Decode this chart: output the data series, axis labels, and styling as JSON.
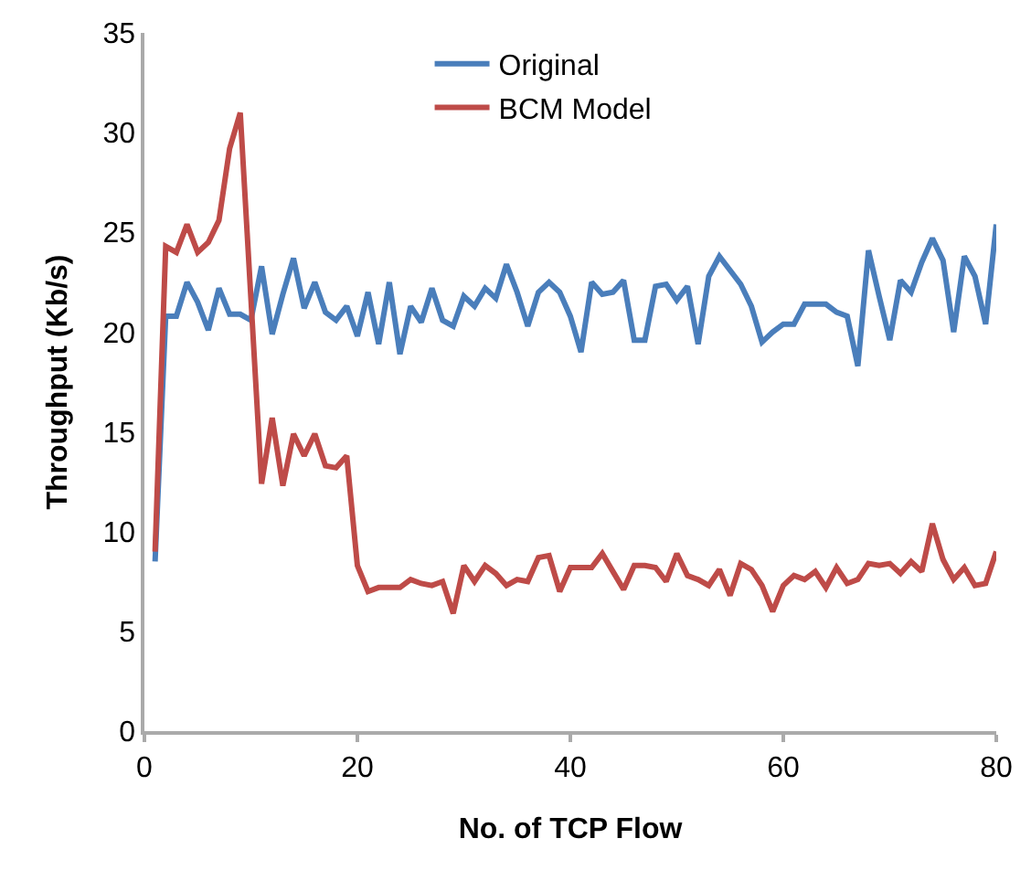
{
  "chart_data": {
    "type": "line",
    "xlabel": "No. of TCP Flow",
    "ylabel": "Throughput (Kb/s)",
    "x": [
      1,
      2,
      3,
      4,
      5,
      6,
      7,
      8,
      9,
      10,
      11,
      12,
      13,
      14,
      15,
      16,
      17,
      18,
      19,
      20,
      21,
      22,
      23,
      24,
      25,
      26,
      27,
      28,
      29,
      30,
      31,
      32,
      33,
      34,
      35,
      36,
      37,
      38,
      39,
      40,
      41,
      42,
      43,
      44,
      45,
      46,
      47,
      48,
      49,
      50,
      51,
      52,
      53,
      54,
      55,
      56,
      57,
      58,
      59,
      60,
      61,
      62,
      63,
      64,
      65,
      66,
      67,
      68,
      69,
      70,
      71,
      72,
      73,
      74,
      75,
      76,
      77,
      78,
      79,
      80
    ],
    "series": [
      {
        "name": "Original",
        "color": "#4a7ebb",
        "values": [
          8.5,
          20.8,
          20.8,
          22.5,
          21.5,
          20.1,
          22.2,
          20.9,
          20.9,
          20.6,
          23.3,
          19.9,
          21.9,
          23.7,
          21.2,
          22.5,
          21.0,
          20.6,
          21.3,
          19.8,
          22.0,
          19.4,
          22.5,
          18.9,
          21.3,
          20.5,
          22.2,
          20.6,
          20.3,
          21.8,
          21.3,
          22.2,
          21.7,
          23.4,
          22.0,
          20.3,
          22.0,
          22.5,
          22.0,
          20.8,
          19.0,
          22.5,
          21.9,
          22.0,
          22.6,
          19.6,
          19.6,
          22.3,
          22.4,
          21.6,
          22.3,
          19.4,
          22.8,
          23.8,
          23.1,
          22.4,
          21.3,
          19.5,
          20.0,
          20.4,
          20.4,
          21.4,
          21.4,
          21.4,
          21.0,
          20.8,
          18.3,
          24.1,
          21.8,
          19.6,
          22.6,
          22.0,
          23.5,
          24.7,
          23.6,
          20.0,
          23.8,
          22.8,
          20.4,
          25.4
        ]
      },
      {
        "name": "BCM Model",
        "color": "#be4b48",
        "values": [
          9.0,
          24.3,
          24.0,
          25.4,
          24.0,
          24.5,
          25.6,
          29.2,
          31.0,
          21.7,
          12.4,
          15.7,
          12.3,
          14.9,
          13.8,
          14.9,
          13.3,
          13.2,
          13.8,
          8.3,
          7.0,
          7.2,
          7.2,
          7.2,
          7.6,
          7.4,
          7.3,
          7.5,
          5.9,
          8.3,
          7.5,
          8.3,
          7.9,
          7.3,
          7.6,
          7.5,
          8.7,
          8.8,
          7.0,
          8.2,
          8.2,
          8.2,
          8.9,
          8.0,
          7.1,
          8.3,
          8.3,
          8.2,
          7.5,
          8.9,
          7.8,
          7.6,
          7.3,
          8.1,
          6.8,
          8.4,
          8.1,
          7.3,
          6.0,
          7.3,
          7.8,
          7.6,
          8.0,
          7.2,
          8.2,
          7.4,
          7.6,
          8.4,
          8.3,
          8.4,
          7.9,
          8.5,
          8.0,
          10.4,
          8.6,
          7.6,
          8.2,
          7.3,
          7.4,
          9.0
        ]
      }
    ],
    "xlim": [
      0,
      80
    ],
    "xticks": [
      0,
      20,
      40,
      60,
      80
    ],
    "ylim": [
      0,
      35
    ],
    "yticks": [
      0,
      5,
      10,
      15,
      20,
      25,
      30,
      35
    ],
    "grid": false,
    "legend": "top"
  }
}
